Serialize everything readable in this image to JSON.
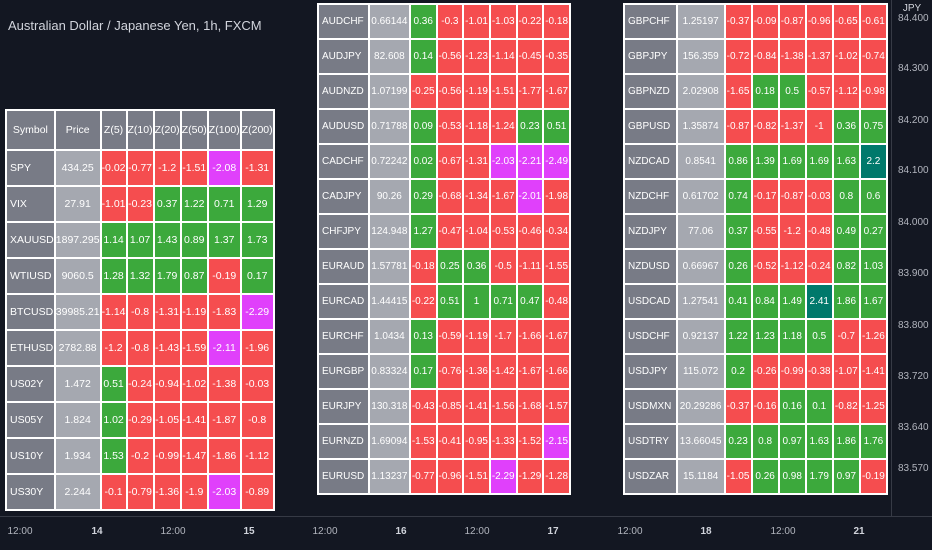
{
  "chart": {
    "title": "Australian Dollar / Japanese Yen, 1h, FXCM",
    "currency": "JPY"
  },
  "price_axis": [
    "84.400",
    "84.300",
    "84.200",
    "84.100",
    "84.000",
    "83.900",
    "83.800",
    "83.720",
    "83.640",
    "83.570"
  ],
  "time_axis": [
    {
      "label": "12:00",
      "bold": false
    },
    {
      "label": "14",
      "bold": true
    },
    {
      "label": "12:00",
      "bold": false
    },
    {
      "label": "15",
      "bold": true
    },
    {
      "label": "12:00",
      "bold": false
    },
    {
      "label": "16",
      "bold": true
    },
    {
      "label": "12:00",
      "bold": false
    },
    {
      "label": "17",
      "bold": true
    },
    {
      "label": "12:00",
      "bold": false
    },
    {
      "label": "18",
      "bold": true
    },
    {
      "label": "12:00",
      "bold": false
    },
    {
      "label": "21",
      "bold": true
    }
  ],
  "colors": {
    "negative": "#f54d4f",
    "positive": "#3ca93c",
    "extreme_negative": "#e040fb",
    "extreme_positive": "#00796b",
    "symbol_cell": "#787b86",
    "price_cell": "#a5a8b0"
  },
  "tables": {
    "t1": {
      "headers": [
        "Symbol",
        "Price",
        "Z(5)",
        "Z(10)",
        "Z(20)",
        "Z(50)",
        "Z(100)",
        "Z(200)"
      ],
      "rows": [
        {
          "symbol": "SPY",
          "price": "434.25",
          "z": [
            "-0.02",
            "-0.77",
            "-1.2",
            "-1.51",
            "-2.08",
            "-1.31"
          ]
        },
        {
          "symbol": "VIX",
          "price": "27.91",
          "z": [
            "-1.01",
            "-0.23",
            "0.37",
            "1.22",
            "0.71",
            "1.29"
          ]
        },
        {
          "symbol": "XAUUSD",
          "price": "1897.295",
          "z": [
            "1.14",
            "1.07",
            "1.43",
            "0.89",
            "1.37",
            "1.73"
          ]
        },
        {
          "symbol": "WTIUSD",
          "price": "9060.5",
          "z": [
            "1.28",
            "1.32",
            "1.79",
            "0.87",
            "-0.19",
            "0.17"
          ]
        },
        {
          "symbol": "BTCUSD",
          "price": "39985.21",
          "z": [
            "-1.14",
            "-0.8",
            "-1.31",
            "-1.19",
            "-1.83",
            "-2.29"
          ]
        },
        {
          "symbol": "ETHUSD",
          "price": "2782.88",
          "z": [
            "-1.2",
            "-0.8",
            "-1.43",
            "-1.59",
            "-2.11",
            "-1.96"
          ]
        },
        {
          "symbol": "US02Y",
          "price": "1.472",
          "z": [
            "0.51",
            "-0.24",
            "-0.94",
            "-1.02",
            "-1.38",
            "-0.03"
          ]
        },
        {
          "symbol": "US05Y",
          "price": "1.824",
          "z": [
            "1.02",
            "-0.29",
            "-1.05",
            "-1.41",
            "-1.87",
            "-0.8"
          ]
        },
        {
          "symbol": "US10Y",
          "price": "1.934",
          "z": [
            "1.53",
            "-0.2",
            "-0.99",
            "-1.47",
            "-1.86",
            "-1.12"
          ]
        },
        {
          "symbol": "US30Y",
          "price": "2.244",
          "z": [
            "-0.1",
            "-0.79",
            "-1.36",
            "-1.9",
            "-2.03",
            "-0.89"
          ]
        }
      ]
    },
    "t2": {
      "rows": [
        {
          "symbol": "AUDCHF",
          "price": "0.66144",
          "z": [
            "0.36",
            "-0.3",
            "-1.01",
            "-1.03",
            "-0.22",
            "-0.18"
          ]
        },
        {
          "symbol": "AUDJPY",
          "price": "82.608",
          "z": [
            "0.14",
            "-0.56",
            "-1.23",
            "-1.14",
            "-0.45",
            "-0.35"
          ]
        },
        {
          "symbol": "AUDNZD",
          "price": "1.07199",
          "z": [
            "-0.25",
            "-0.56",
            "-1.19",
            "-1.51",
            "-1.77",
            "-1.67"
          ]
        },
        {
          "symbol": "AUDUSD",
          "price": "0.71788",
          "z": [
            "0.09",
            "-0.53",
            "-1.18",
            "-1.24",
            "0.23",
            "0.51"
          ]
        },
        {
          "symbol": "CADCHF",
          "price": "0.72242",
          "z": [
            "0.02",
            "-0.67",
            "-1.31",
            "-2.03",
            "-2.21",
            "-2.49"
          ]
        },
        {
          "symbol": "CADJPY",
          "price": "90.26",
          "z": [
            "0.29",
            "-0.68",
            "-1.34",
            "-1.67",
            "-2.01",
            "-1.98"
          ]
        },
        {
          "symbol": "CHFJPY",
          "price": "124.948",
          "z": [
            "1.27",
            "-0.47",
            "-1.04",
            "-0.53",
            "-0.46",
            "-0.34"
          ]
        },
        {
          "symbol": "EURAUD",
          "price": "1.57781",
          "z": [
            "-0.18",
            "0.25",
            "0.36",
            "-0.5",
            "-1.11",
            "-1.55"
          ]
        },
        {
          "symbol": "EURCAD",
          "price": "1.44415",
          "z": [
            "-0.22",
            "0.51",
            "1",
            "0.71",
            "0.47",
            "-0.48"
          ]
        },
        {
          "symbol": "EURCHF",
          "price": "1.0434",
          "z": [
            "0.13",
            "-0.59",
            "-1.19",
            "-1.7",
            "-1.66",
            "-1.67"
          ]
        },
        {
          "symbol": "EURGBP",
          "price": "0.83324",
          "z": [
            "0.17",
            "-0.76",
            "-1.36",
            "-1.42",
            "-1.67",
            "-1.66"
          ]
        },
        {
          "symbol": "EURJPY",
          "price": "130.318",
          "z": [
            "-0.43",
            "-0.85",
            "-1.41",
            "-1.56",
            "-1.68",
            "-1.57"
          ]
        },
        {
          "symbol": "EURNZD",
          "price": "1.69094",
          "z": [
            "-1.53",
            "-0.41",
            "-0.95",
            "-1.33",
            "-1.52",
            "-2.15"
          ]
        },
        {
          "symbol": "EURUSD",
          "price": "1.13237",
          "z": [
            "-0.77",
            "-0.96",
            "-1.51",
            "-2.29",
            "-1.29",
            "-1.28"
          ]
        }
      ]
    },
    "t3": {
      "rows": [
        {
          "symbol": "GBPCHF",
          "price": "1.25197",
          "z": [
            "-0.37",
            "-0.09",
            "-0.87",
            "-0.96",
            "-0.65",
            "-0.61"
          ]
        },
        {
          "symbol": "GBPJPY",
          "price": "156.359",
          "z": [
            "-0.72",
            "-0.84",
            "-1.38",
            "-1.37",
            "-1.02",
            "-0.74"
          ]
        },
        {
          "symbol": "GBPNZD",
          "price": "2.02908",
          "z": [
            "-1.65",
            "0.18",
            "0.5",
            "-0.57",
            "-1.12",
            "-0.98"
          ]
        },
        {
          "symbol": "GBPUSD",
          "price": "1.35874",
          "z": [
            "-0.87",
            "-0.82",
            "-1.37",
            "-1",
            "0.36",
            "0.75"
          ]
        },
        {
          "symbol": "NZDCAD",
          "price": "0.8541",
          "z": [
            "0.86",
            "1.39",
            "1.69",
            "1.69",
            "1.63",
            "2.2"
          ]
        },
        {
          "symbol": "NZDCHF",
          "price": "0.61702",
          "z": [
            "0.74",
            "-0.17",
            "-0.87",
            "-0.03",
            "0.8",
            "0.6"
          ]
        },
        {
          "symbol": "NZDJPY",
          "price": "77.06",
          "z": [
            "0.37",
            "-0.55",
            "-1.2",
            "-0.48",
            "0.49",
            "0.27"
          ]
        },
        {
          "symbol": "NZDUSD",
          "price": "0.66967",
          "z": [
            "0.26",
            "-0.52",
            "-1.12",
            "-0.24",
            "0.82",
            "1.03"
          ]
        },
        {
          "symbol": "USDCAD",
          "price": "1.27541",
          "z": [
            "0.41",
            "0.84",
            "1.49",
            "2.41",
            "1.86",
            "1.67"
          ]
        },
        {
          "symbol": "USDCHF",
          "price": "0.92137",
          "z": [
            "1.22",
            "1.23",
            "1.18",
            "0.5",
            "-0.7",
            "-1.26"
          ]
        },
        {
          "symbol": "USDJPY",
          "price": "115.072",
          "z": [
            "0.2",
            "-0.26",
            "-0.99",
            "-0.38",
            "-1.07",
            "-1.41"
          ]
        },
        {
          "symbol": "USDMXN",
          "price": "20.29286",
          "z": [
            "-0.37",
            "-0.16",
            "0.16",
            "0.1",
            "-0.82",
            "-1.25"
          ]
        },
        {
          "symbol": "USDTRY",
          "price": "13.66045",
          "z": [
            "0.23",
            "0.8",
            "0.97",
            "1.63",
            "1.86",
            "1.76"
          ]
        },
        {
          "symbol": "USDZAR",
          "price": "15.1184",
          "z": [
            "-1.05",
            "0.26",
            "0.98",
            "1.79",
            "0.97",
            "-0.19"
          ]
        }
      ]
    }
  }
}
